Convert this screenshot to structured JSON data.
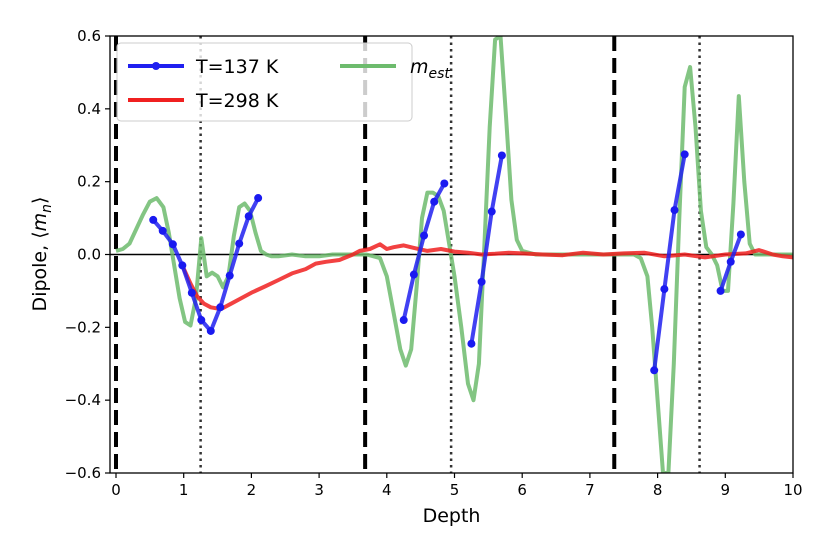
{
  "chart_data": {
    "type": "line",
    "xlabel": "Depth",
    "ylabel": "Dipole, ⟨m_n⟩",
    "xlim": [
      0,
      10
    ],
    "ylim": [
      -0.6,
      0.6
    ],
    "xticks": [
      0,
      1,
      2,
      3,
      4,
      5,
      6,
      7,
      8,
      9,
      10
    ],
    "xtick_labels": [
      "0",
      "1",
      "2",
      "3",
      "4",
      "5",
      "6",
      "7",
      "8",
      "9",
      "10"
    ],
    "yticks": [
      -0.6,
      -0.4,
      -0.2,
      0.0,
      0.2,
      0.4,
      0.6
    ],
    "ytick_labels": [
      "−0.6",
      "−0.4",
      "−0.2",
      "0.0",
      "0.2",
      "0.4",
      "0.6"
    ],
    "legend_position": "top-left",
    "grid": false,
    "reference_lines": {
      "dashed_x": [
        0.0,
        3.68,
        7.36
      ],
      "dotted_x": [
        1.25,
        4.95,
        8.62
      ],
      "zero_line": 0.0
    },
    "series": [
      {
        "name": "T=137 K",
        "color": "#2020f0",
        "marker": "circle",
        "segments": [
          {
            "x": [
              0.55,
              0.69,
              0.84,
              0.98,
              1.12,
              1.26,
              1.4,
              1.54,
              1.68,
              1.82,
              1.96,
              2.1
            ],
            "y": [
              0.095,
              0.065,
              0.028,
              -0.03,
              -0.105,
              -0.18,
              -0.21,
              -0.145,
              -0.058,
              0.03,
              0.105,
              0.155
            ]
          },
          {
            "x": [
              4.25,
              4.4,
              4.55,
              4.7,
              4.85
            ],
            "y": [
              -0.18,
              -0.055,
              0.052,
              0.145,
              0.195
            ]
          },
          {
            "x": [
              5.25,
              5.4,
              5.55,
              5.7
            ],
            "y": [
              -0.245,
              -0.075,
              0.118,
              0.272
            ]
          },
          {
            "x": [
              7.95,
              8.1,
              8.25,
              8.4
            ],
            "y": [
              -0.318,
              -0.095,
              0.122,
              0.275
            ]
          },
          {
            "x": [
              8.93,
              9.08,
              9.23
            ],
            "y": [
              -0.1,
              -0.02,
              0.055
            ]
          }
        ]
      },
      {
        "name": "T=298 K",
        "color": "#f02020",
        "marker": "none",
        "x": [
          0.98,
          1.1,
          1.2,
          1.3,
          1.4,
          1.55,
          1.7,
          1.85,
          2.0,
          2.2,
          2.4,
          2.6,
          2.8,
          2.95,
          3.1,
          3.3,
          3.5,
          3.6,
          3.75,
          3.9,
          4.0,
          4.1,
          4.25,
          4.4,
          4.6,
          4.8,
          5.0,
          5.2,
          5.4,
          5.6,
          5.8,
          6.0,
          6.3,
          6.6,
          6.9,
          7.2,
          7.5,
          7.8,
          8.1,
          8.4,
          8.7,
          9.0,
          9.3,
          9.5,
          9.7,
          9.85,
          10.0
        ],
        "y": [
          -0.03,
          -0.08,
          -0.115,
          -0.135,
          -0.145,
          -0.15,
          -0.135,
          -0.12,
          -0.105,
          -0.088,
          -0.07,
          -0.052,
          -0.04,
          -0.025,
          -0.02,
          -0.015,
          0.0,
          0.01,
          0.015,
          0.028,
          0.015,
          0.02,
          0.025,
          0.018,
          0.01,
          0.015,
          0.008,
          0.005,
          0.0,
          0.002,
          0.005,
          0.003,
          0.0,
          -0.002,
          0.005,
          0.0,
          0.003,
          0.005,
          -0.005,
          0.0,
          -0.008,
          0.0,
          0.003,
          0.012,
          0.0,
          -0.005,
          -0.008
        ]
      },
      {
        "name": "m_est",
        "color": "#6dbb6d",
        "marker": "none",
        "x": [
          0.0,
          0.1,
          0.2,
          0.3,
          0.4,
          0.5,
          0.6,
          0.7,
          0.78,
          0.86,
          0.94,
          1.02,
          1.1,
          1.18,
          1.26,
          1.34,
          1.42,
          1.5,
          1.58,
          1.66,
          1.74,
          1.82,
          1.9,
          1.98,
          2.06,
          2.14,
          2.22,
          2.3,
          2.4,
          2.6,
          2.8,
          3.0,
          3.2,
          3.4,
          3.55,
          3.7,
          3.9,
          4.0,
          4.1,
          4.2,
          4.28,
          4.36,
          4.44,
          4.52,
          4.6,
          4.68,
          4.76,
          4.84,
          4.92,
          5.0,
          5.1,
          5.2,
          5.28,
          5.36,
          5.44,
          5.52,
          5.6,
          5.68,
          5.76,
          5.84,
          5.92,
          6.0,
          6.2,
          6.4,
          6.6,
          6.8,
          7.0,
          7.2,
          7.4,
          7.55,
          7.65,
          7.75,
          7.85,
          7.92,
          8.0,
          8.08,
          8.16,
          8.24,
          8.32,
          8.4,
          8.48,
          8.56,
          8.64,
          8.72,
          8.8,
          8.88,
          8.96,
          9.04,
          9.12,
          9.2,
          9.28,
          9.36,
          9.44,
          9.6,
          9.8,
          10.0
        ],
        "y": [
          0.01,
          0.015,
          0.03,
          0.07,
          0.11,
          0.145,
          0.155,
          0.13,
          0.06,
          -0.03,
          -0.12,
          -0.185,
          -0.195,
          -0.12,
          0.045,
          -0.06,
          -0.05,
          -0.06,
          -0.09,
          -0.06,
          0.05,
          0.13,
          0.14,
          0.12,
          0.06,
          0.01,
          0.0,
          -0.005,
          -0.005,
          0.0,
          -0.005,
          -0.005,
          0.0,
          0.0,
          0.0,
          0.0,
          -0.01,
          -0.06,
          -0.16,
          -0.26,
          -0.305,
          -0.26,
          -0.09,
          0.1,
          0.17,
          0.17,
          0.16,
          0.12,
          0.03,
          -0.06,
          -0.2,
          -0.355,
          -0.4,
          -0.3,
          0.02,
          0.35,
          0.59,
          0.6,
          0.38,
          0.15,
          0.04,
          0.01,
          0.0,
          0.0,
          0.0,
          0.0,
          0.0,
          0.0,
          0.0,
          0.0,
          0.0,
          -0.01,
          -0.06,
          -0.2,
          -0.4,
          -0.6,
          -0.6,
          -0.3,
          0.1,
          0.46,
          0.515,
          0.35,
          0.12,
          0.02,
          0.0,
          -0.03,
          -0.1,
          -0.1,
          0.14,
          0.435,
          0.2,
          0.03,
          0.0,
          0.0,
          0.0,
          0.0
        ]
      }
    ]
  },
  "legend": {
    "items": [
      {
        "label": "T=137 K",
        "color": "#2020f0",
        "marker": true
      },
      {
        "label": "T=298 K",
        "color": "#f02020",
        "marker": false
      },
      {
        "label": "m",
        "sub": "est",
        "color": "#6dbb6d",
        "marker": false
      }
    ]
  }
}
